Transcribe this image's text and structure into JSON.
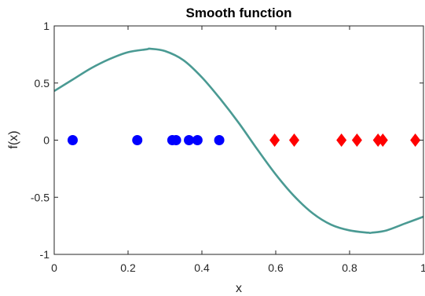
{
  "chart_data": {
    "type": "scatter",
    "title": "Smooth function",
    "xlabel": "x",
    "ylabel": "f(x)",
    "xlim": [
      0,
      1
    ],
    "ylim": [
      -1,
      1
    ],
    "xticks": [
      0,
      0.2,
      0.4,
      0.6,
      0.8,
      1
    ],
    "xtick_labels": [
      "0",
      "0.2",
      "0.4",
      "0.6",
      "0.8",
      "1"
    ],
    "yticks": [
      -1,
      -0.5,
      0,
      0.5,
      1
    ],
    "ytick_labels": [
      "-1",
      "-0.5",
      "0",
      "0.5",
      "1"
    ],
    "grid": false,
    "series": [
      {
        "kind": "line",
        "color": "#4a9a93",
        "x": [
          0,
          0.05,
          0.1,
          0.15,
          0.2,
          0.25,
          0.26,
          0.3,
          0.35,
          0.4,
          0.45,
          0.5,
          0.55,
          0.6,
          0.65,
          0.7,
          0.75,
          0.8,
          0.85,
          0.86,
          0.9,
          0.95,
          1
        ],
        "y": [
          0.43,
          0.53,
          0.63,
          0.71,
          0.77,
          0.795,
          0.8,
          0.78,
          0.7,
          0.55,
          0.36,
          0.15,
          -0.08,
          -0.3,
          -0.49,
          -0.64,
          -0.74,
          -0.79,
          -0.81,
          -0.81,
          -0.79,
          -0.73,
          -0.67
        ]
      },
      {
        "kind": "points",
        "marker": "circle",
        "color": "#0000ff",
        "x": [
          0.05,
          0.225,
          0.32,
          0.33,
          0.365,
          0.388,
          0.447
        ],
        "y": [
          0,
          0,
          0,
          0,
          0,
          0,
          0
        ]
      },
      {
        "kind": "points",
        "marker": "diamond",
        "color": "#ff0000",
        "x": [
          0.597,
          0.65,
          0.778,
          0.82,
          0.877,
          0.89,
          0.978
        ],
        "y": [
          0,
          0,
          0,
          0,
          0,
          0,
          0
        ]
      }
    ]
  }
}
